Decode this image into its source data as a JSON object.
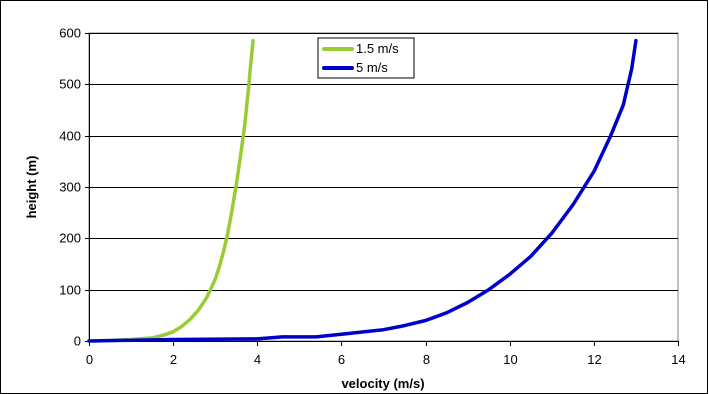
{
  "chart_data": {
    "type": "line",
    "title": "",
    "xlabel": "velocity (m/s)",
    "ylabel": "height (m)",
    "xlim": [
      0,
      14
    ],
    "ylim": [
      0,
      600
    ],
    "xticks": [
      0,
      2,
      4,
      6,
      8,
      10,
      12,
      14
    ],
    "yticks": [
      0,
      100,
      200,
      300,
      400,
      500,
      600
    ],
    "grid": "horizontal",
    "legend": "top-center",
    "series": [
      {
        "name": "1.5 m/s",
        "color": "#99cc33",
        "x": [
          0,
          0.5,
          1.0,
          1.5,
          1.8,
          2.0,
          2.2,
          2.4,
          2.6,
          2.8,
          3.0,
          3.1,
          3.2,
          3.3,
          3.4,
          3.5,
          3.6,
          3.7,
          3.75,
          3.8,
          3.85,
          3.9
        ],
        "y": [
          0,
          1,
          3,
          6,
          12,
          18,
          28,
          42,
          60,
          85,
          120,
          145,
          175,
          210,
          255,
          305,
          360,
          420,
          460,
          500,
          545,
          585
        ]
      },
      {
        "name": "5 m/s",
        "color": "#0000cc",
        "x": [
          0,
          2,
          4,
          4.6,
          5.4,
          6,
          7,
          7.5,
          8,
          8.5,
          9,
          9.5,
          10,
          10.5,
          11,
          11.5,
          12,
          12.4,
          12.7,
          12.9,
          13.0
        ],
        "y": [
          0,
          3,
          4,
          8,
          8,
          13,
          22,
          30,
          40,
          55,
          75,
          100,
          130,
          165,
          210,
          265,
          330,
          400,
          460,
          530,
          585
        ]
      }
    ]
  }
}
